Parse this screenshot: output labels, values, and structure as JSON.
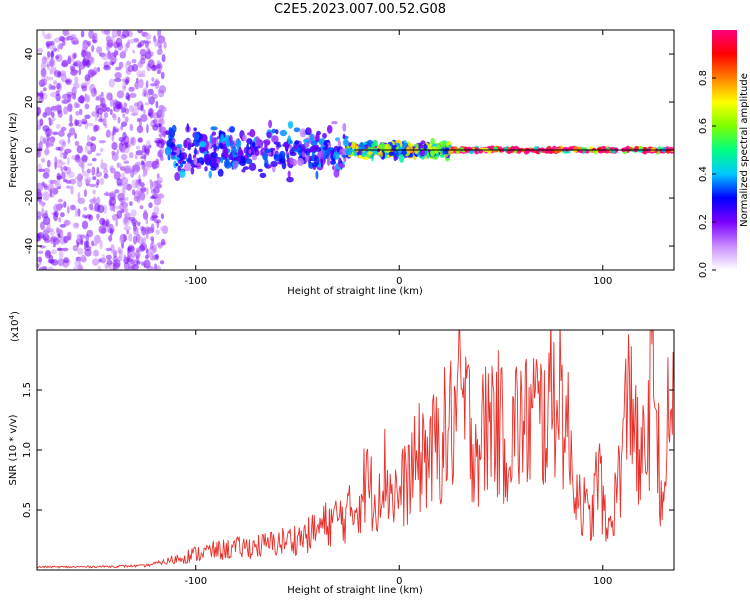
{
  "title": "C2E5.2023.007.00.52.G08",
  "chart_data": [
    {
      "type": "heatmap",
      "name": "spectrogram",
      "xlabel": "Height of straight line (km)",
      "ylabel": "Frequency (Hz)",
      "xlim": [
        -178,
        135
      ],
      "ylim": [
        -50,
        50
      ],
      "x_ticks": [
        -100,
        0,
        100
      ],
      "y_ticks": [
        -40,
        -20,
        0,
        20,
        40
      ],
      "colorbar": {
        "label": "Normalized spectral amplitude",
        "range": [
          0,
          1
        ],
        "ticks": [
          "0.0",
          "0.2",
          "0.4",
          "0.6",
          "0.8"
        ],
        "colormap": [
          "#ffffff",
          "#c98cff",
          "#7a00ff",
          "#0000ff",
          "#00c8ff",
          "#00ff80",
          "#7fff00",
          "#ffff00",
          "#ff8000",
          "#ff0000",
          "#ff0080"
        ]
      },
      "regions": [
        {
          "x_range": [
            -178,
            -115
          ],
          "freq_spread_hz": 50,
          "amplitude": 0.05,
          "description_key": "noise"
        },
        {
          "x_range": [
            -115,
            -25
          ],
          "freq_spread_hz": 10,
          "amplitude": 0.25
        },
        {
          "x_range": [
            -25,
            25
          ],
          "freq_spread_hz": 3,
          "amplitude": 0.5
        },
        {
          "x_range": [
            25,
            135
          ],
          "freq_spread_hz": 1,
          "amplitude": 0.95
        }
      ],
      "center_frequency_hz": 0
    },
    {
      "type": "line",
      "name": "snr",
      "xlabel": "Height of straight line (km)",
      "ylabel": "SNR (10 * v/v)",
      "scale_label": "(x10",
      "scale_exponent": "4",
      "xlim": [
        -178,
        135
      ],
      "ylim": [
        0,
        20000
      ],
      "x_ticks": [
        -100,
        0,
        100
      ],
      "y_ticks": [
        5000,
        10000,
        15000
      ],
      "y_tick_labels": [
        "0.5",
        "1.0",
        "1.5"
      ],
      "line_color": "#e8302a",
      "series": [
        {
          "name": "SNR",
          "x": [
            -178,
            -160,
            -140,
            -125,
            -115,
            -105,
            -95,
            -85,
            -75,
            -65,
            -55,
            -45,
            -38,
            -32,
            -28,
            -24,
            -20,
            -16,
            -12,
            -8,
            -4,
            0,
            4,
            8,
            12,
            16,
            20,
            24,
            28,
            30,
            34,
            38,
            42,
            46,
            50,
            54,
            58,
            62,
            66,
            70,
            74,
            76,
            78,
            80,
            82,
            84,
            86,
            90,
            94,
            98,
            102,
            106,
            110,
            114,
            118,
            122,
            125,
            127,
            130,
            132,
            135
          ],
          "y": [
            250,
            250,
            300,
            350,
            700,
            1200,
            1600,
            1800,
            2000,
            2200,
            2600,
            3000,
            3800,
            4400,
            4600,
            5000,
            6000,
            8000,
            6000,
            9000,
            7000,
            6500,
            8000,
            9000,
            10500,
            10000,
            11500,
            12000,
            14000,
            15000,
            13000,
            11000,
            12000,
            14000,
            12000,
            11000,
            13000,
            12500,
            14000,
            13000,
            14500,
            16000,
            17000,
            15000,
            13000,
            10000,
            8000,
            6000,
            4000,
            9000,
            3000,
            6000,
            11000,
            17000,
            8000,
            12000,
            19500,
            11000,
            4000,
            13000,
            15000
          ]
        }
      ]
    }
  ]
}
